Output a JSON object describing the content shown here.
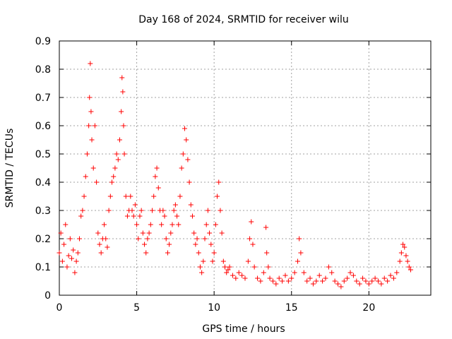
{
  "chart_data": {
    "type": "scatter",
    "title": "Day 168 of 2024, SRMTID for receiver wilu",
    "xlabel": "GPS time / hours",
    "ylabel": "SRMTID / TECUs",
    "xlim": [
      0,
      24
    ],
    "ylim": [
      0,
      0.9
    ],
    "xticks": [
      0,
      5,
      10,
      15,
      20
    ],
    "xtick_labels": [
      "0",
      "5",
      "10",
      "15",
      "20"
    ],
    "yticks": [
      0,
      0.1,
      0.2,
      0.3,
      0.4,
      0.5,
      0.6,
      0.7,
      0.8,
      0.9
    ],
    "ytick_labels": [
      "0",
      "0.1",
      "0.2",
      "0.3",
      "0.4",
      "0.5",
      "0.6",
      "0.7",
      "0.8",
      "0.9"
    ],
    "grid": true,
    "marker": "+",
    "color": "#ff0000",
    "series": [
      {
        "name": "SRMTID",
        "x": [
          0.0,
          0.1,
          0.2,
          0.3,
          0.4,
          0.5,
          0.6,
          0.7,
          0.8,
          0.9,
          1.0,
          1.1,
          1.2,
          1.3,
          1.4,
          1.5,
          1.6,
          1.7,
          1.8,
          1.9,
          1.95,
          2.0,
          2.05,
          2.1,
          2.2,
          2.3,
          2.4,
          2.5,
          2.6,
          2.7,
          2.8,
          2.9,
          3.0,
          3.1,
          3.2,
          3.3,
          3.4,
          3.5,
          3.6,
          3.7,
          3.8,
          3.9,
          4.0,
          4.05,
          4.1,
          4.15,
          4.2,
          4.3,
          4.4,
          4.5,
          4.6,
          4.7,
          4.8,
          4.9,
          5.0,
          5.1,
          5.2,
          5.3,
          5.4,
          5.5,
          5.6,
          5.7,
          5.8,
          5.9,
          6.0,
          6.1,
          6.2,
          6.3,
          6.4,
          6.5,
          6.6,
          6.7,
          6.8,
          6.9,
          7.0,
          7.1,
          7.2,
          7.3,
          7.4,
          7.5,
          7.6,
          7.7,
          7.8,
          7.9,
          8.0,
          8.1,
          8.2,
          8.3,
          8.4,
          8.5,
          8.6,
          8.7,
          8.8,
          8.9,
          9.0,
          9.1,
          9.2,
          9.3,
          9.4,
          9.5,
          9.6,
          9.7,
          9.8,
          9.9,
          10.0,
          10.1,
          10.2,
          10.3,
          10.4,
          10.5,
          10.6,
          10.7,
          10.8,
          10.9,
          11.0,
          11.2,
          11.4,
          11.6,
          11.8,
          12.0,
          12.2,
          12.3,
          12.4,
          12.5,
          12.6,
          12.8,
          13.0,
          13.2,
          13.35,
          13.4,
          13.5,
          13.6,
          13.8,
          14.0,
          14.2,
          14.4,
          14.6,
          14.8,
          15.0,
          15.2,
          15.4,
          15.5,
          15.6,
          15.8,
          16.0,
          16.2,
          16.4,
          16.6,
          16.8,
          17.0,
          17.2,
          17.4,
          17.6,
          17.8,
          18.0,
          18.2,
          18.4,
          18.6,
          18.8,
          19.0,
          19.2,
          19.4,
          19.6,
          19.8,
          20.0,
          20.2,
          20.4,
          20.6,
          20.8,
          21.0,
          21.2,
          21.4,
          21.6,
          21.8,
          22.0,
          22.1,
          22.2,
          22.3,
          22.4,
          22.5,
          22.6,
          22.7
        ],
        "y": [
          0.15,
          0.22,
          0.12,
          0.18,
          0.25,
          0.1,
          0.14,
          0.2,
          0.13,
          0.16,
          0.08,
          0.12,
          0.15,
          0.2,
          0.28,
          0.3,
          0.35,
          0.42,
          0.5,
          0.6,
          0.7,
          0.82,
          0.65,
          0.55,
          0.45,
          0.6,
          0.4,
          0.22,
          0.18,
          0.15,
          0.2,
          0.25,
          0.2,
          0.17,
          0.3,
          0.35,
          0.4,
          0.42,
          0.45,
          0.5,
          0.48,
          0.55,
          0.65,
          0.77,
          0.72,
          0.6,
          0.5,
          0.35,
          0.28,
          0.3,
          0.35,
          0.3,
          0.28,
          0.32,
          0.25,
          0.2,
          0.28,
          0.3,
          0.22,
          0.18,
          0.15,
          0.2,
          0.22,
          0.25,
          0.3,
          0.35,
          0.42,
          0.45,
          0.38,
          0.3,
          0.25,
          0.3,
          0.28,
          0.2,
          0.15,
          0.18,
          0.22,
          0.25,
          0.3,
          0.32,
          0.28,
          0.25,
          0.35,
          0.45,
          0.5,
          0.59,
          0.55,
          0.48,
          0.4,
          0.32,
          0.28,
          0.22,
          0.18,
          0.2,
          0.15,
          0.1,
          0.08,
          0.12,
          0.2,
          0.25,
          0.3,
          0.22,
          0.18,
          0.12,
          0.15,
          0.25,
          0.35,
          0.4,
          0.3,
          0.22,
          0.12,
          0.1,
          0.08,
          0.09,
          0.1,
          0.07,
          0.06,
          0.08,
          0.07,
          0.06,
          0.12,
          0.2,
          0.26,
          0.18,
          0.1,
          0.06,
          0.05,
          0.08,
          0.24,
          0.15,
          0.1,
          0.06,
          0.05,
          0.04,
          0.06,
          0.05,
          0.07,
          0.05,
          0.06,
          0.08,
          0.12,
          0.2,
          0.15,
          0.08,
          0.05,
          0.06,
          0.04,
          0.05,
          0.07,
          0.05,
          0.06,
          0.1,
          0.08,
          0.05,
          0.04,
          0.03,
          0.05,
          0.06,
          0.08,
          0.07,
          0.05,
          0.04,
          0.06,
          0.05,
          0.04,
          0.05,
          0.06,
          0.05,
          0.04,
          0.06,
          0.05,
          0.07,
          0.06,
          0.08,
          0.12,
          0.15,
          0.18,
          0.17,
          0.14,
          0.12,
          0.1,
          0.09
        ]
      }
    ]
  }
}
